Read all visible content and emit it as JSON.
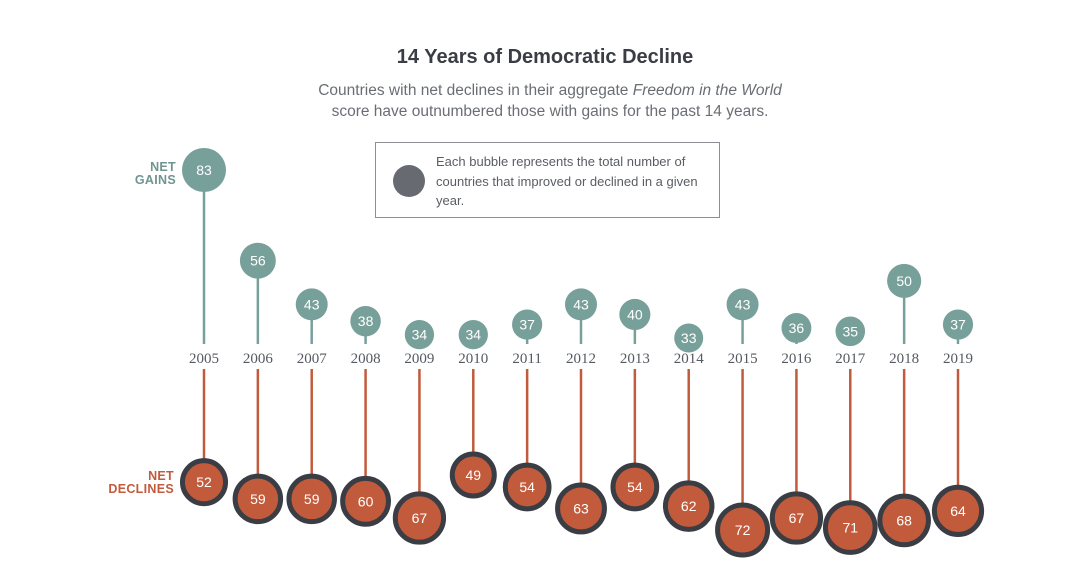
{
  "chart_data": {
    "type": "bubble-lollipop",
    "title": "14 Years of Democratic Decline",
    "subtitle_line1_pre": "Countries with net declines in their aggregate ",
    "subtitle_line1_em": "Freedom in the World",
    "subtitle_line2": "score have outnumbered those with gains for the past 14 years.",
    "legend_text": "Each bubble represents the total number of countries that improved or declined in a given year.",
    "gains_label_line1": "NET",
    "gains_label_line2": "GAINS",
    "declines_label_line1": "NET",
    "declines_label_line2": "DECLINES",
    "years": [
      "2005",
      "2006",
      "2007",
      "2008",
      "2009",
      "2010",
      "2011",
      "2012",
      "2013",
      "2014",
      "2015",
      "2016",
      "2017",
      "2018",
      "2019"
    ],
    "series": [
      {
        "name": "NET GAINS",
        "values": [
          83,
          56,
          43,
          38,
          34,
          34,
          37,
          43,
          40,
          33,
          43,
          36,
          35,
          50,
          37
        ]
      },
      {
        "name": "NET DECLINES",
        "values": [
          52,
          59,
          59,
          60,
          67,
          49,
          54,
          63,
          54,
          62,
          72,
          67,
          71,
          68,
          64
        ]
      }
    ],
    "colors": {
      "gains": "#78a09b",
      "declines": "#c25b3c",
      "decline_ring": "#3a3d44",
      "legend_bubble": "#676a70"
    }
  }
}
